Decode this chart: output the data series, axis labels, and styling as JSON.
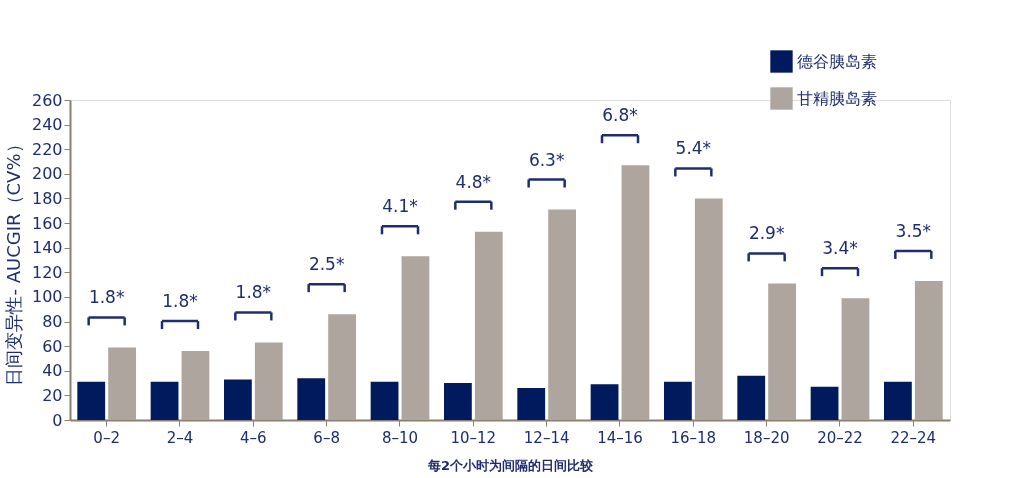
{
  "chart_data": {
    "type": "bar",
    "xlabel": "每2个小时为间隔的日间比较",
    "ylabel": "日间变异性- AUCGIR（CV%）",
    "categories": [
      "0–2",
      "2–4",
      "4–6",
      "6–8",
      "8–10",
      "10–12",
      "12–14",
      "14–16",
      "16–18",
      "18–20",
      "20–22",
      "22–24"
    ],
    "series": [
      {
        "name": "德谷胰岛素",
        "color": "#001a5e",
        "values": [
          31,
          31,
          33,
          34,
          31,
          30,
          26,
          29,
          31,
          36,
          27,
          31
        ]
      },
      {
        "name": "甘精胰岛素",
        "color": "#aea59e",
        "values": [
          59,
          56,
          63,
          86,
          133,
          153,
          171,
          207,
          180,
          111,
          99,
          113
        ]
      }
    ],
    "ylim": [
      0,
      260
    ],
    "yticks": [
      0,
      20,
      40,
      60,
      80,
      100,
      120,
      140,
      160,
      180,
      200,
      220,
      240,
      260
    ],
    "legend": "top right",
    "grid": false,
    "annotations": [
      "1.8*",
      "1.8*",
      "1.8*",
      "2.5*",
      "4.1*",
      "4.8*",
      "6.3*",
      "6.8*",
      "5.4*",
      "2.9*",
      "3.4*",
      "3.5*"
    ]
  }
}
